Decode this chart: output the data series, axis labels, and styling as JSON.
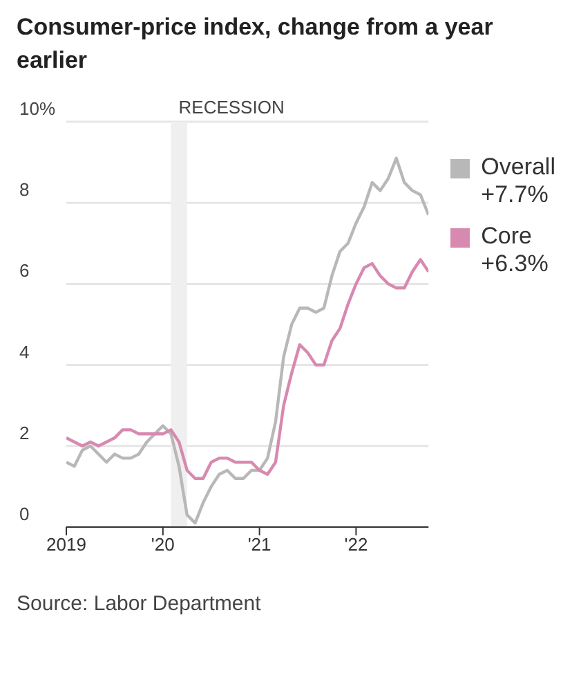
{
  "chart_data": {
    "type": "line",
    "title": "Consumer-price index, change from a year earlier",
    "annotations": [
      "Source: Labor Department"
    ],
    "x": [
      "2019-01",
      "2019-02",
      "2019-03",
      "2019-04",
      "2019-05",
      "2019-06",
      "2019-07",
      "2019-08",
      "2019-09",
      "2019-10",
      "2019-11",
      "2019-12",
      "2020-01",
      "2020-02",
      "2020-03",
      "2020-04",
      "2020-05",
      "2020-06",
      "2020-07",
      "2020-08",
      "2020-09",
      "2020-10",
      "2020-11",
      "2020-12",
      "2021-01",
      "2021-02",
      "2021-03",
      "2021-04",
      "2021-05",
      "2021-06",
      "2021-07",
      "2021-08",
      "2021-09",
      "2021-10",
      "2021-11",
      "2021-12",
      "2022-01",
      "2022-02",
      "2022-03",
      "2022-04",
      "2022-05",
      "2022-06",
      "2022-07",
      "2022-08",
      "2022-09",
      "2022-10"
    ],
    "series": [
      {
        "name": "Overall +7.7%",
        "color": "#b8b8b8",
        "values": [
          1.6,
          1.5,
          1.9,
          2.0,
          1.8,
          1.6,
          1.8,
          1.7,
          1.7,
          1.8,
          2.1,
          2.3,
          2.5,
          2.3,
          1.5,
          0.3,
          0.1,
          0.6,
          1.0,
          1.3,
          1.4,
          1.2,
          1.2,
          1.4,
          1.4,
          1.7,
          2.6,
          4.2,
          5.0,
          5.4,
          5.4,
          5.3,
          5.4,
          6.2,
          6.8,
          7.0,
          7.5,
          7.9,
          8.5,
          8.3,
          8.6,
          9.1,
          8.5,
          8.3,
          8.2,
          7.7
        ]
      },
      {
        "name": "Core +6.3%",
        "color": "#d889b0",
        "values": [
          2.2,
          2.1,
          2.0,
          2.1,
          2.0,
          2.1,
          2.2,
          2.4,
          2.4,
          2.3,
          2.3,
          2.3,
          2.3,
          2.4,
          2.1,
          1.4,
          1.2,
          1.2,
          1.6,
          1.7,
          1.7,
          1.6,
          1.6,
          1.6,
          1.4,
          1.3,
          1.6,
          3.0,
          3.8,
          4.5,
          4.3,
          4.0,
          4.0,
          4.6,
          4.9,
          5.5,
          6.0,
          6.4,
          6.5,
          6.2,
          6.0,
          5.9,
          5.9,
          6.3,
          6.6,
          6.3
        ]
      }
    ],
    "xlim": [
      "2019-01",
      "2022-10"
    ],
    "xticks": [
      {
        "value": "2019-01",
        "label": "2019"
      },
      {
        "value": "2020-01",
        "label": "'20"
      },
      {
        "value": "2021-01",
        "label": "'21"
      },
      {
        "value": "2022-01",
        "label": "'22"
      }
    ],
    "ylim": [
      0,
      10
    ],
    "yticks": [
      0,
      2,
      4,
      6,
      8,
      {
        "value": 10,
        "label": "10%"
      }
    ],
    "bands": [
      {
        "axis": "x",
        "from": "2020-02",
        "to": "2020-04",
        "label": "RECESSION",
        "color": "#efefef"
      }
    ],
    "grid": "y",
    "legend": "right",
    "line_style": "solid",
    "marker": "none"
  }
}
